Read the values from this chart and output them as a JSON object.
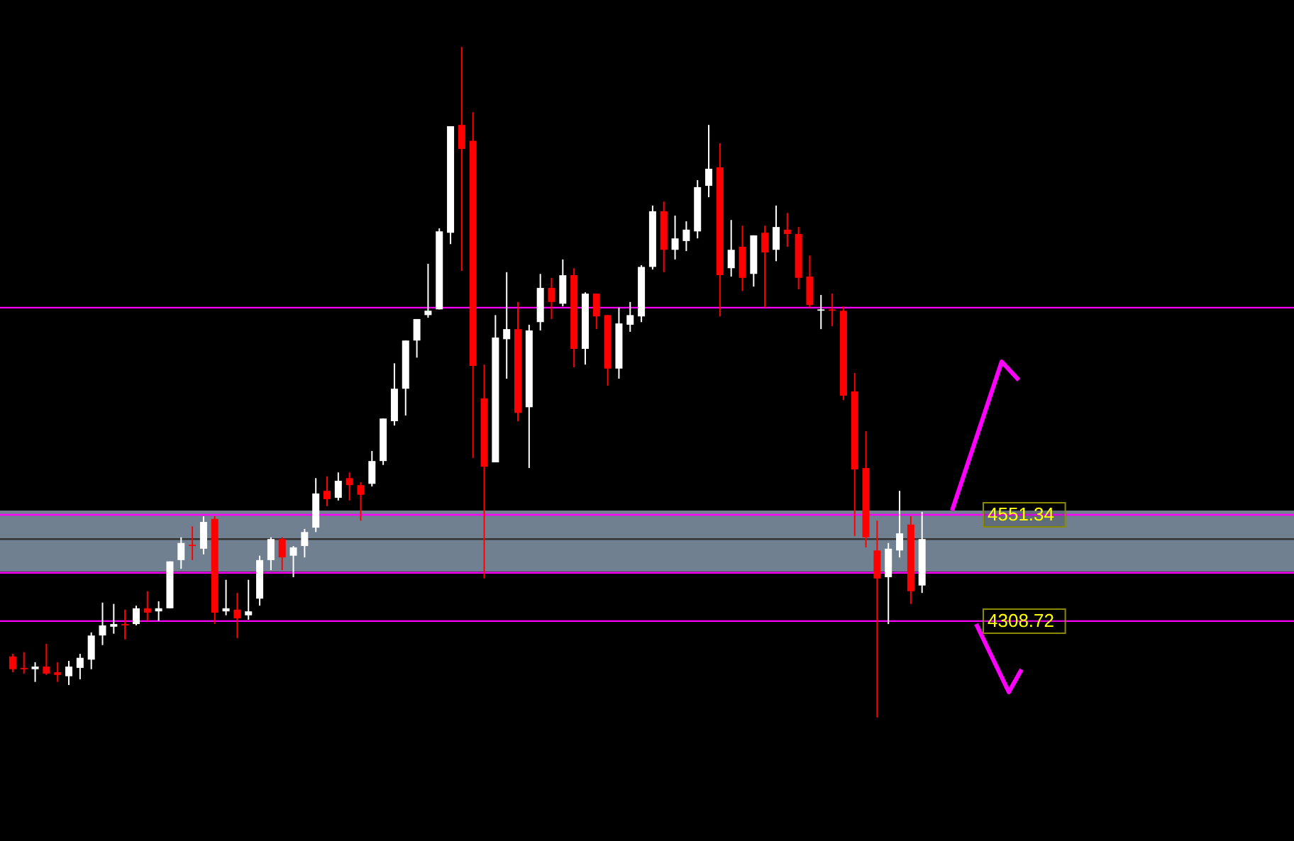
{
  "chart_data": {
    "type": "candlestick",
    "categories": [
      null,
      null,
      null,
      null,
      null,
      null,
      null,
      null,
      null,
      null,
      null,
      null,
      null,
      null,
      null,
      null,
      null,
      null,
      null,
      null,
      null,
      null,
      null,
      null,
      null,
      null,
      null,
      null,
      null,
      null,
      null,
      null,
      null,
      null,
      null,
      null,
      null,
      null,
      null,
      null,
      null,
      null,
      null,
      null,
      null,
      null,
      null,
      null,
      null,
      null,
      null,
      null,
      null,
      null,
      null,
      null,
      null,
      null,
      null,
      null,
      null,
      null,
      null,
      null,
      null,
      null,
      null,
      null,
      null,
      null,
      null,
      null,
      null,
      null,
      null,
      null,
      null,
      null,
      null,
      null,
      null,
      null
    ],
    "ohlc": [
      [
        4228,
        4234,
        4192,
        4199
      ],
      [
        4202,
        4238,
        4189,
        4199
      ],
      [
        4199,
        4215,
        4170,
        4205
      ],
      [
        4205,
        4257,
        4186,
        4189
      ],
      [
        4192,
        4215,
        4170,
        4186
      ],
      [
        4183,
        4218,
        4163,
        4205
      ],
      [
        4202,
        4234,
        4176,
        4225
      ],
      [
        4221,
        4283,
        4199,
        4276
      ],
      [
        4276,
        4351,
        4254,
        4299
      ],
      [
        4296,
        4348,
        4280,
        4302
      ],
      [
        4302,
        4335,
        4267,
        4299
      ],
      [
        4302,
        4344,
        4299,
        4338
      ],
      [
        4338,
        4377,
        4309,
        4328
      ],
      [
        4331,
        4354,
        4309,
        4338
      ],
      [
        4338,
        4445,
        4338,
        4445
      ],
      [
        4448,
        4500,
        4428,
        4487
      ],
      [
        4483,
        4525,
        4448,
        4480
      ],
      [
        4474,
        4548,
        4461,
        4535
      ],
      [
        4542,
        4548,
        4302,
        4328
      ],
      [
        4331,
        4403,
        4322,
        4338
      ],
      [
        4335,
        4373,
        4270,
        4315
      ],
      [
        4322,
        4403,
        4312,
        4331
      ],
      [
        4360,
        4458,
        4344,
        4448
      ],
      [
        4448,
        4500,
        4425,
        4496
      ],
      [
        4496,
        4500,
        4425,
        4454
      ],
      [
        4458,
        4480,
        4409,
        4477
      ],
      [
        4480,
        4519,
        4454,
        4512
      ],
      [
        4522,
        4635,
        4512,
        4600
      ],
      [
        4606,
        4639,
        4571,
        4587
      ],
      [
        4590,
        4648,
        4584,
        4629
      ],
      [
        4635,
        4648,
        4584,
        4619
      ],
      [
        4619,
        4626,
        4538,
        4597
      ],
      [
        4622,
        4697,
        4616,
        4674
      ],
      [
        4674,
        4771,
        4665,
        4771
      ],
      [
        4765,
        4897,
        4755,
        4839
      ],
      [
        4839,
        4949,
        4778,
        4949
      ],
      [
        4949,
        4998,
        4910,
        4998
      ],
      [
        5007,
        5124,
        5001,
        5017
      ],
      [
        5020,
        5205,
        5020,
        5198
      ],
      [
        5195,
        5438,
        5169,
        5438
      ],
      [
        5441,
        5619,
        5108,
        5386
      ],
      [
        5405,
        5470,
        4681,
        4891
      ],
      [
        4817,
        4894,
        4406,
        4661
      ],
      [
        4671,
        5007,
        4671,
        4956
      ],
      [
        4952,
        5105,
        4862,
        4975
      ],
      [
        4975,
        5037,
        4765,
        4784
      ],
      [
        4797,
        4985,
        4658,
        4972
      ],
      [
        4991,
        5101,
        4972,
        5069
      ],
      [
        5069,
        5092,
        4998,
        5037
      ],
      [
        5033,
        5134,
        5027,
        5098
      ],
      [
        5098,
        5114,
        4888,
        4930
      ],
      [
        4930,
        5059,
        4894,
        5056
      ],
      [
        5056,
        5056,
        4975,
        5004
      ],
      [
        5007,
        5007,
        4846,
        4885
      ],
      [
        4885,
        5024,
        4862,
        4988
      ],
      [
        4985,
        5037,
        4969,
        5007
      ],
      [
        5004,
        5121,
        4991,
        5117
      ],
      [
        5117,
        5257,
        5111,
        5244
      ],
      [
        5244,
        5266,
        5105,
        5156
      ],
      [
        5156,
        5234,
        5134,
        5182
      ],
      [
        5176,
        5221,
        5153,
        5202
      ],
      [
        5198,
        5315,
        5182,
        5299
      ],
      [
        5302,
        5441,
        5276,
        5341
      ],
      [
        5344,
        5399,
        5004,
        5098
      ],
      [
        5114,
        5224,
        5095,
        5156
      ],
      [
        5163,
        5211,
        5062,
        5092
      ],
      [
        5101,
        5189,
        5072,
        5189
      ],
      [
        5195,
        5211,
        5024,
        5150
      ],
      [
        5156,
        5257,
        5130,
        5208
      ],
      [
        5202,
        5240,
        5163,
        5192
      ],
      [
        5192,
        5208,
        5066,
        5092
      ],
      [
        5095,
        5143,
        5024,
        5030
      ],
      [
        5017,
        5053,
        4975,
        5020
      ],
      [
        5020,
        5056,
        4982,
        5017
      ],
      [
        5017,
        5027,
        4813,
        4823
      ],
      [
        4833,
        4875,
        4503,
        4655
      ],
      [
        4658,
        4742,
        4477,
        4500
      ],
      [
        4470,
        4538,
        4089,
        4406
      ],
      [
        4409,
        4487,
        4302,
        4474
      ],
      [
        4470,
        4606,
        4454,
        4509
      ],
      [
        4529,
        4548,
        4348,
        4377
      ],
      [
        4390,
        4558,
        4373,
        4496
      ]
    ],
    "colors": [
      "#ff0000",
      "#ff0000",
      "#ffffff",
      "#ff0000",
      "#ff0000",
      "#ffffff",
      "#ffffff",
      "#ffffff",
      "#ffffff",
      "#ffffff",
      "#ff0000",
      "#ffffff",
      "#ff0000",
      "#ffffff",
      "#ffffff",
      "#ffffff",
      "#ff0000",
      "#ffffff",
      "#ff0000",
      "#ffffff",
      "#ff0000",
      "#ffffff",
      "#ffffff",
      "#ffffff",
      "#ff0000",
      "#ffffff",
      "#ffffff",
      "#ffffff",
      "#ff0000",
      "#ffffff",
      "#ff0000",
      "#ff0000",
      "#ffffff",
      "#ffffff",
      "#ffffff",
      "#ffffff",
      "#ffffff",
      "#ffffff",
      "#ffffff",
      "#ffffff",
      "#ff0000",
      "#ff0000",
      "#ff0000",
      "#ffffff",
      "#ffffff",
      "#ff0000",
      "#ffffff",
      "#ffffff",
      "#ff0000",
      "#ffffff",
      "#ff0000",
      "#ffffff",
      "#ff0000",
      "#ff0000",
      "#ffffff",
      "#ffffff",
      "#ffffff",
      "#ffffff",
      "#ff0000",
      "#ffffff",
      "#ffffff",
      "#ffffff",
      "#ffffff",
      "#ff0000",
      "#ffffff",
      "#ff0000",
      "#ffffff",
      "#ff0000",
      "#ffffff",
      "#ff0000",
      "#ff0000",
      "#ff0000",
      "#ffffff",
      "#ff0000",
      "#ff0000",
      "#ff0000",
      "#ff0000",
      "#ff0000",
      "#ffffff",
      "#ffffff",
      "#ff0000",
      "#ffffff"
    ],
    "ylim": [
      3807,
      5726
    ],
    "tick_labels": false,
    "bands": [
      {
        "axis": "y",
        "from": 4422,
        "to": 4561,
        "color": "#708090"
      }
    ],
    "ref_lines": [
      {
        "axis": "y",
        "value": 5024,
        "color": "#ff00ff"
      },
      {
        "axis": "y",
        "value": 4551.34,
        "label": "4551.34",
        "color": "#ff00ff"
      },
      {
        "axis": "y",
        "value": 4496,
        "color": "#333333"
      },
      {
        "axis": "y",
        "value": 4419,
        "color": "#ff00ff"
      },
      {
        "axis": "y",
        "value": 4308.72,
        "label": "4308.72",
        "color": "#ff00ff"
      }
    ]
  }
}
